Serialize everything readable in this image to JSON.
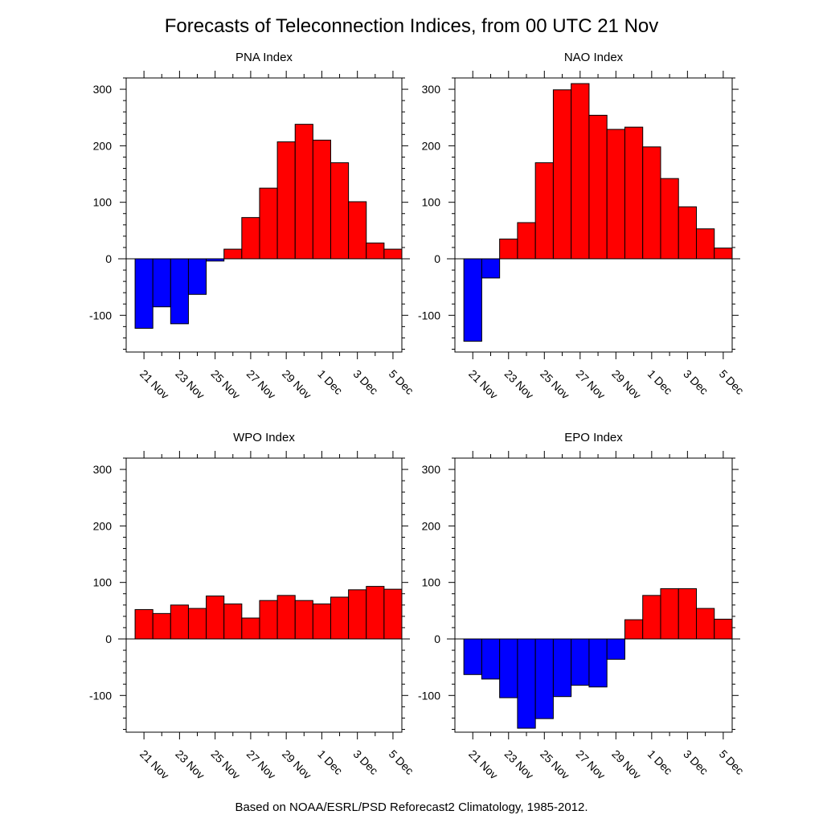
{
  "title": "Forecasts of Teleconnection Indices, from 00 UTC 21 Nov",
  "footer": "Based on NOAA/ESRL/PSD Reforecast2 Climatology, 1985-2012.",
  "colors": {
    "positive": "#ff0000",
    "negative": "#0000ff"
  },
  "chart_data": [
    {
      "type": "bar",
      "title": "PNA Index",
      "x_tick_labels": [
        "21 Nov",
        "23 Nov",
        "25 Nov",
        "27 Nov",
        "29 Nov",
        "1 Dec",
        "3 Dec",
        "5 Dec"
      ],
      "y_tick_labels": [
        "300",
        "200",
        "100",
        "0",
        "-100"
      ],
      "ylim": [
        -165,
        320
      ],
      "values": [
        -123,
        -85,
        -115,
        -63,
        -4,
        17,
        73,
        125,
        207,
        238,
        210,
        170,
        101,
        28,
        17
      ]
    },
    {
      "type": "bar",
      "title": "NAO Index",
      "x_tick_labels": [
        "21 Nov",
        "23 Nov",
        "25 Nov",
        "27 Nov",
        "29 Nov",
        "1 Dec",
        "3 Dec",
        "5 Dec"
      ],
      "y_tick_labels": [
        "300",
        "200",
        "100",
        "0",
        "-100"
      ],
      "ylim": [
        -165,
        320
      ],
      "values": [
        -146,
        -34,
        35,
        64,
        170,
        299,
        310,
        254,
        229,
        233,
        198,
        142,
        92,
        53,
        19
      ]
    },
    {
      "type": "bar",
      "title": "WPO Index",
      "x_tick_labels": [
        "21 Nov",
        "23 Nov",
        "25 Nov",
        "27 Nov",
        "29 Nov",
        "1 Dec",
        "3 Dec",
        "5 Dec"
      ],
      "y_tick_labels": [
        "300",
        "200",
        "100",
        "0",
        "-100"
      ],
      "ylim": [
        -165,
        320
      ],
      "values": [
        52,
        45,
        60,
        54,
        76,
        62,
        37,
        68,
        77,
        68,
        62,
        74,
        87,
        93,
        88
      ]
    },
    {
      "type": "bar",
      "title": "EPO Index",
      "x_tick_labels": [
        "21 Nov",
        "23 Nov",
        "25 Nov",
        "27 Nov",
        "29 Nov",
        "1 Dec",
        "3 Dec",
        "5 Dec"
      ],
      "y_tick_labels": [
        "300",
        "200",
        "100",
        "0",
        "-100"
      ],
      "ylim": [
        -165,
        320
      ],
      "values": [
        -63,
        -71,
        -104,
        -158,
        -141,
        -102,
        -82,
        -85,
        -36,
        34,
        77,
        89,
        89,
        54,
        35
      ]
    }
  ]
}
